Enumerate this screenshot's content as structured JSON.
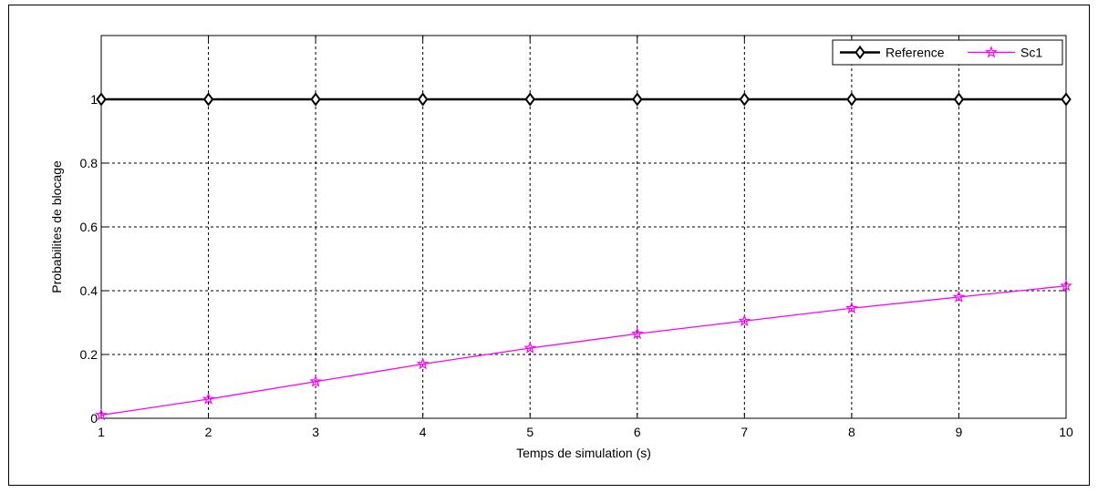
{
  "chart_data": {
    "type": "line",
    "title": "",
    "xlabel": "Temps de simulation (s)",
    "ylabel": "Probabilites de blocage",
    "xlim": [
      1,
      10
    ],
    "ylim": [
      0,
      1.2
    ],
    "x_ticks": [
      1,
      2,
      3,
      4,
      5,
      6,
      7,
      8,
      9,
      10
    ],
    "y_ticks": [
      0,
      0.2,
      0.4,
      0.6,
      0.8,
      1
    ],
    "x_tick_labels": [
      "1",
      "2",
      "3",
      "4",
      "5",
      "6",
      "7",
      "8",
      "9",
      "10"
    ],
    "y_tick_labels": [
      "0",
      "0.2",
      "0.4",
      "0.6",
      "0.8",
      "1"
    ],
    "grid": true,
    "legend_position": "top-right",
    "x": [
      1,
      2,
      3,
      4,
      5,
      6,
      7,
      8,
      9,
      10
    ],
    "series": [
      {
        "name": "Reference",
        "values": [
          1,
          1,
          1,
          1,
          1,
          1,
          1,
          1,
          1,
          1
        ],
        "color": "#000000",
        "marker": "diamond"
      },
      {
        "name": "Sc1",
        "values": [
          0.01,
          0.06,
          0.115,
          0.17,
          0.22,
          0.265,
          0.305,
          0.345,
          0.38,
          0.415
        ],
        "color": "#ff00ff",
        "marker": "star"
      }
    ]
  }
}
